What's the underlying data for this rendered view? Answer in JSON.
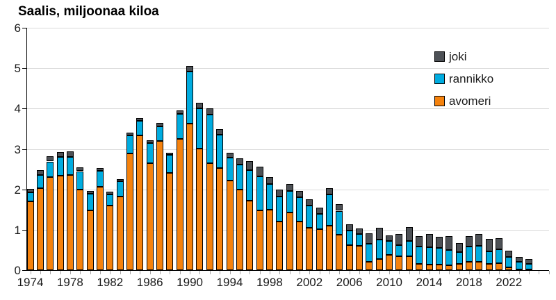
{
  "chart_data": {
    "type": "bar",
    "stacked": true,
    "title": "Saalis, miljoonaa kiloa",
    "categories": [
      1974,
      1975,
      1976,
      1977,
      1978,
      1979,
      1980,
      1981,
      1982,
      1983,
      1984,
      1985,
      1986,
      1987,
      1988,
      1989,
      1990,
      1991,
      1992,
      1993,
      1994,
      1995,
      1996,
      1997,
      1998,
      1999,
      2000,
      2001,
      2002,
      2003,
      2004,
      2005,
      2006,
      2007,
      2008,
      2009,
      2010,
      2011,
      2012,
      2013,
      2014,
      2015,
      2016,
      2017,
      2018,
      2019,
      2020,
      2021,
      2022,
      2023,
      2024
    ],
    "series": [
      {
        "name": "avomeri",
        "color": "#F5820D",
        "values": [
          1.7,
          2.03,
          2.31,
          2.34,
          2.35,
          2.0,
          1.48,
          2.06,
          1.6,
          1.82,
          2.88,
          3.33,
          2.64,
          3.2,
          2.41,
          3.25,
          3.63,
          3.0,
          2.65,
          2.53,
          2.22,
          2.0,
          1.71,
          1.48,
          1.5,
          1.2,
          1.43,
          1.2,
          1.05,
          1.02,
          1.1,
          0.87,
          0.62,
          0.6,
          0.2,
          0.28,
          0.38,
          0.34,
          0.35,
          0.15,
          0.14,
          0.14,
          0.12,
          0.15,
          0.2,
          0.21,
          0.15,
          0.18,
          0.07,
          0.02,
          0.02
        ]
      },
      {
        "name": "rannikko",
        "color": "#00ACE0",
        "values": [
          0.22,
          0.33,
          0.38,
          0.46,
          0.45,
          0.45,
          0.42,
          0.4,
          0.28,
          0.38,
          0.45,
          0.37,
          0.5,
          0.36,
          0.44,
          0.61,
          1.28,
          1.0,
          1.2,
          0.82,
          0.56,
          0.62,
          0.77,
          0.85,
          0.63,
          0.62,
          0.53,
          0.6,
          0.55,
          0.37,
          0.77,
          0.6,
          0.36,
          0.29,
          0.45,
          0.47,
          0.34,
          0.28,
          0.37,
          0.44,
          0.43,
          0.41,
          0.37,
          0.29,
          0.38,
          0.39,
          0.32,
          0.34,
          0.26,
          0.18,
          0.13
        ]
      },
      {
        "name": "joki",
        "color": "#4D5156",
        "values": [
          0.1,
          0.12,
          0.12,
          0.13,
          0.14,
          0.1,
          0.06,
          0.07,
          0.06,
          0.06,
          0.08,
          0.07,
          0.07,
          0.08,
          0.06,
          0.1,
          0.14,
          0.15,
          0.15,
          0.14,
          0.13,
          0.15,
          0.22,
          0.24,
          0.18,
          0.17,
          0.17,
          0.16,
          0.16,
          0.15,
          0.16,
          0.17,
          0.15,
          0.15,
          0.26,
          0.3,
          0.14,
          0.27,
          0.34,
          0.26,
          0.33,
          0.28,
          0.36,
          0.23,
          0.26,
          0.29,
          0.31,
          0.28,
          0.16,
          0.13,
          0.13
        ]
      }
    ],
    "legend": [
      "joki",
      "rannikko",
      "avomeri"
    ],
    "legend_position": "top-right",
    "ylim": [
      0,
      6
    ],
    "yticks": [
      0,
      1,
      2,
      3,
      4,
      5,
      6
    ],
    "xtick_labels": [
      "1974",
      "1978",
      "1982",
      "1986",
      "1990",
      "1994",
      "1998",
      "2002",
      "2006",
      "2010",
      "2014",
      "2018",
      "2022"
    ],
    "xlabel": "",
    "ylabel": "",
    "grid": "horizontal"
  },
  "colors": {
    "background": "#FFFFFF",
    "gridline": "#D9D9D9",
    "axis": "#000000",
    "tick_text": "#1A1A1A",
    "bar_border": "#000000"
  }
}
